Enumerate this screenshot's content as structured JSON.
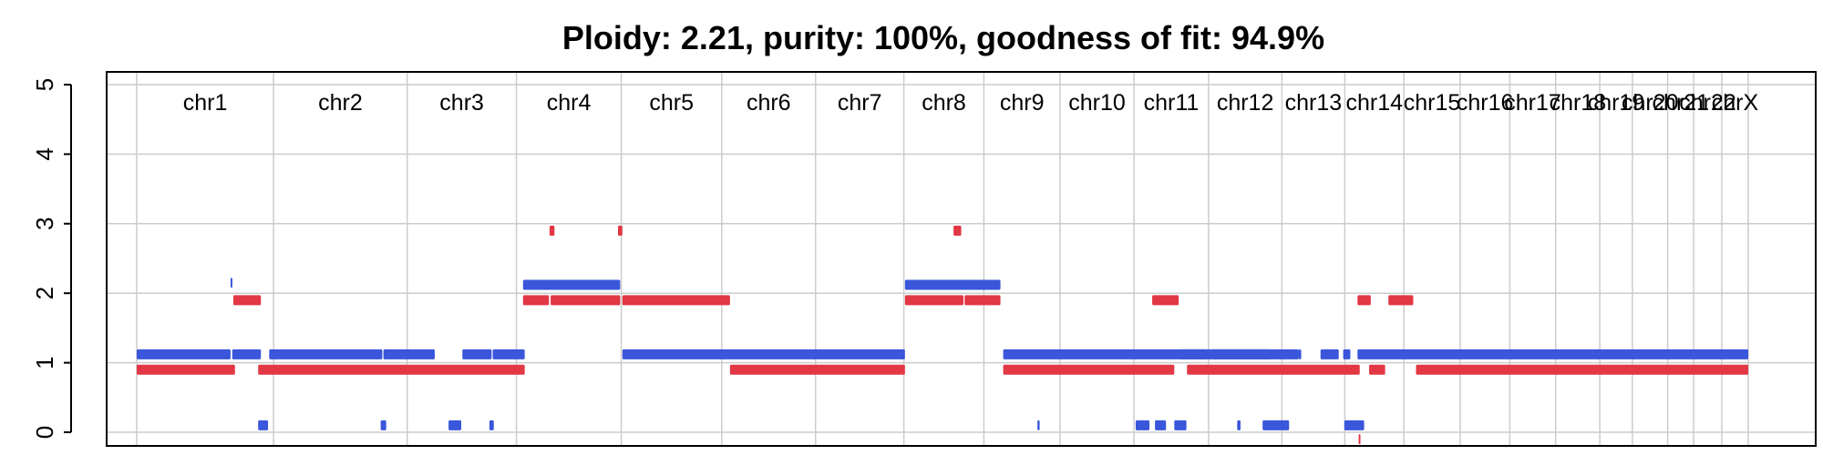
{
  "chart_data": {
    "type": "segment-plot",
    "title": "Ploidy: 2.21, purity: 100%, goodness of fit: 94.9%",
    "ylim": [
      0,
      5
    ],
    "y_ticks": [
      "0",
      "1",
      "2",
      "3",
      "4",
      "5"
    ],
    "grid": true,
    "colors": {
      "major": "#3A56DA",
      "minor": "#E23744",
      "grid": "#cccccc",
      "axis": "#000000"
    },
    "chromosomes": [
      {
        "name": "chr1",
        "start": 0,
        "end": 248
      },
      {
        "name": "chr2",
        "start": 248,
        "end": 490
      },
      {
        "name": "chr3",
        "start": 490,
        "end": 688
      },
      {
        "name": "chr4",
        "start": 688,
        "end": 878
      },
      {
        "name": "chr5",
        "start": 878,
        "end": 1060
      },
      {
        "name": "chr6",
        "start": 1060,
        "end": 1230
      },
      {
        "name": "chr7",
        "start": 1230,
        "end": 1390
      },
      {
        "name": "chr8",
        "start": 1390,
        "end": 1535
      },
      {
        "name": "chr9",
        "start": 1535,
        "end": 1673
      },
      {
        "name": "chr10",
        "start": 1673,
        "end": 1807
      },
      {
        "name": "chr11",
        "start": 1807,
        "end": 1942
      },
      {
        "name": "chr12",
        "start": 1942,
        "end": 2075
      },
      {
        "name": "chr13",
        "start": 2075,
        "end": 2189
      },
      {
        "name": "chr14",
        "start": 2189,
        "end": 2296
      },
      {
        "name": "chr15",
        "start": 2296,
        "end": 2398
      },
      {
        "name": "chr16",
        "start": 2398,
        "end": 2488
      },
      {
        "name": "chr17",
        "start": 2488,
        "end": 2571
      },
      {
        "name": "chr18",
        "start": 2571,
        "end": 2651
      },
      {
        "name": "chr19",
        "start": 2651,
        "end": 2710
      },
      {
        "name": "chr20",
        "start": 2710,
        "end": 2774
      },
      {
        "name": "chr21",
        "start": 2774,
        "end": 2821
      },
      {
        "name": "chr22",
        "start": 2821,
        "end": 2872
      },
      {
        "name": "chrX",
        "start": 2872,
        "end": 2920
      }
    ],
    "chr_labels_printed": [
      "chr1",
      "chr2",
      "chr3",
      "chr4",
      "chr5",
      "chr6",
      "chr7",
      "chr8",
      "chr9",
      "chr10",
      "chr11",
      "chr12",
      "chr13",
      "chr14",
      "chr15",
      "chr16",
      "chr17",
      "chr18",
      "chr19",
      "chr20",
      "chr21",
      "chr22",
      "chrX"
    ],
    "major_segments": [
      {
        "start": 0,
        "end": 170,
        "cn": 1.12
      },
      {
        "start": 170,
        "end": 172,
        "cn": 2.15
      },
      {
        "start": 173,
        "end": 225,
        "cn": 1.12
      },
      {
        "start": 220,
        "end": 238,
        "cn": 0.1
      },
      {
        "start": 240,
        "end": 445,
        "cn": 1.12
      },
      {
        "start": 442,
        "end": 452,
        "cn": 0.1
      },
      {
        "start": 447,
        "end": 540,
        "cn": 1.12
      },
      {
        "start": 565,
        "end": 588,
        "cn": 0.1
      },
      {
        "start": 590,
        "end": 643,
        "cn": 1.12
      },
      {
        "start": 639,
        "end": 647,
        "cn": 0.1
      },
      {
        "start": 645,
        "end": 703,
        "cn": 1.12
      },
      {
        "start": 700,
        "end": 876,
        "cn": 2.12
      },
      {
        "start": 880,
        "end": 1392,
        "cn": 1.12
      },
      {
        "start": 1392,
        "end": 1565,
        "cn": 2.12
      },
      {
        "start": 1570,
        "end": 2055,
        "cn": 1.12
      },
      {
        "start": 1632,
        "end": 1636,
        "cn": 0.1
      },
      {
        "start": 1810,
        "end": 1835,
        "cn": 0.1
      },
      {
        "start": 1845,
        "end": 1865,
        "cn": 0.1
      },
      {
        "start": 1880,
        "end": 1900,
        "cn": 0.1
      },
      {
        "start": 1896,
        "end": 1902,
        "cn": 0.1
      },
      {
        "start": 1890,
        "end": 1938,
        "cn": 1.12
      },
      {
        "start": 1947,
        "end": 2105,
        "cn": 1.12
      },
      {
        "start": 2105,
        "end": 2110,
        "cn": 1.12
      },
      {
        "start": 1994,
        "end": 2000,
        "cn": 0.1
      },
      {
        "start": 2040,
        "end": 2088,
        "cn": 0.1
      },
      {
        "start": 2145,
        "end": 2178,
        "cn": 1.12
      },
      {
        "start": 2186,
        "end": 2199,
        "cn": 1.12
      },
      {
        "start": 2188,
        "end": 2224,
        "cn": 0.1
      },
      {
        "start": 2212,
        "end": 2920,
        "cn": 1.12
      }
    ],
    "minor_segments": [
      {
        "start": 0,
        "end": 178,
        "cn": 0.9
      },
      {
        "start": 175,
        "end": 225,
        "cn": 1.9
      },
      {
        "start": 220,
        "end": 703,
        "cn": 0.9
      },
      {
        "start": 700,
        "end": 747,
        "cn": 1.9
      },
      {
        "start": 750,
        "end": 876,
        "cn": 1.9
      },
      {
        "start": 748,
        "end": 757,
        "cn": 2.9
      },
      {
        "start": 872,
        "end": 880,
        "cn": 2.9
      },
      {
        "start": 880,
        "end": 1075,
        "cn": 1.9
      },
      {
        "start": 1075,
        "end": 1392,
        "cn": 0.9
      },
      {
        "start": 1392,
        "end": 1498,
        "cn": 1.9
      },
      {
        "start": 1500,
        "end": 1565,
        "cn": 1.9
      },
      {
        "start": 1480,
        "end": 1494,
        "cn": 2.9
      },
      {
        "start": 1570,
        "end": 1880,
        "cn": 0.9
      },
      {
        "start": 1840,
        "end": 1888,
        "cn": 1.9
      },
      {
        "start": 1903,
        "end": 2216,
        "cn": 0.9
      },
      {
        "start": 2214,
        "end": 2216,
        "cn": -0.1
      },
      {
        "start": 2212,
        "end": 2236,
        "cn": 1.9
      },
      {
        "start": 2233,
        "end": 2262,
        "cn": 0.9
      },
      {
        "start": 2268,
        "end": 2313,
        "cn": 1.9
      },
      {
        "start": 2318,
        "end": 2920,
        "cn": 0.9
      }
    ]
  }
}
